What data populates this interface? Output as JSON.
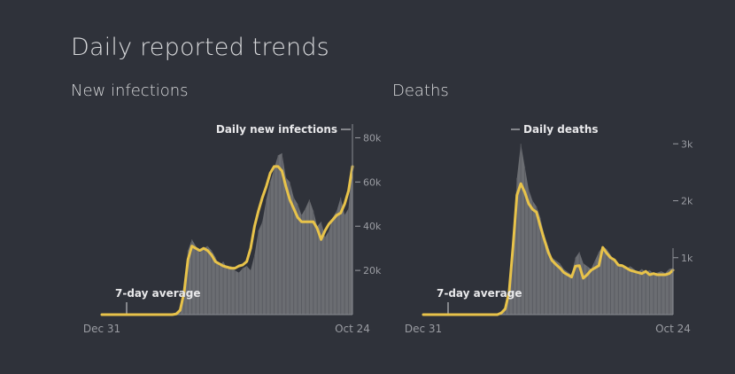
{
  "page_title": "Daily reported trends",
  "accent_color": "#e8c34a",
  "bar_color": "#6b6d72",
  "chart_data": [
    {
      "type": "area",
      "title": "New infections",
      "x_start": "Dec 31",
      "x_end": "Oct 24",
      "ylim": [
        0,
        85000
      ],
      "yticks": [
        {
          "value": 20000,
          "label": "20k"
        },
        {
          "value": 40000,
          "label": "40k"
        },
        {
          "value": 60000,
          "label": "60k"
        },
        {
          "value": 80000,
          "label": "80k"
        }
      ],
      "daily_label": "Daily new infections",
      "avg_label": "7-day average",
      "series": [
        {
          "name": "Daily new infections",
          "values": [
            0,
            0,
            0,
            0,
            0,
            0,
            0,
            0,
            0,
            0,
            0,
            0,
            0,
            0,
            0,
            0,
            0,
            0,
            0,
            500,
            3000,
            12000,
            29000,
            34000,
            31000,
            28000,
            30000,
            31000,
            29000,
            26000,
            22000,
            24000,
            21000,
            22000,
            20000,
            19000,
            21000,
            22000,
            20000,
            27000,
            38000,
            42000,
            52000,
            60000,
            66000,
            72000,
            73000,
            62000,
            60000,
            53000,
            50000,
            45000,
            48000,
            52000,
            47000,
            40000,
            42000,
            35000,
            38000,
            44000,
            47000,
            53000,
            45000,
            48000,
            70000
          ]
        },
        {
          "name": "7-day average",
          "values": [
            0,
            0,
            0,
            0,
            0,
            0,
            0,
            0,
            0,
            0,
            0,
            0,
            0,
            0,
            0,
            0,
            0,
            0,
            0,
            300,
            2000,
            10000,
            25000,
            31000,
            30000,
            29000,
            30000,
            29000,
            27000,
            24000,
            23000,
            22000,
            21500,
            21000,
            21000,
            22000,
            22500,
            24000,
            30000,
            40000,
            47000,
            53000,
            58000,
            64000,
            67000,
            67000,
            65000,
            58000,
            52000,
            48000,
            44000,
            42000,
            42000,
            42000,
            42000,
            39000,
            34000,
            38000,
            41000,
            43000,
            45000,
            46000,
            50000,
            56000,
            67000
          ]
        }
      ]
    },
    {
      "type": "area",
      "title": "Deaths",
      "x_start": "Dec 31",
      "x_end": "Oct 24",
      "ylim": [
        0,
        3300
      ],
      "yticks": [
        {
          "value": 1000,
          "label": "1k"
        },
        {
          "value": 2000,
          "label": "2k"
        },
        {
          "value": 3000,
          "label": "3k"
        }
      ],
      "daily_label": "Daily deaths",
      "avg_label": "7-day average",
      "series": [
        {
          "name": "Daily deaths",
          "values": [
            0,
            0,
            0,
            0,
            0,
            0,
            0,
            0,
            0,
            0,
            0,
            0,
            0,
            0,
            0,
            0,
            0,
            0,
            0,
            0,
            40,
            150,
            500,
            1300,
            2400,
            3000,
            2600,
            2200,
            2000,
            1900,
            1700,
            1400,
            1200,
            1000,
            950,
            900,
            800,
            750,
            700,
            1000,
            1100,
            900,
            850,
            800,
            950,
            1100,
            1200,
            1150,
            1050,
            950,
            900,
            850,
            800,
            850,
            800,
            750,
            800,
            750,
            780,
            720,
            740,
            760,
            730,
            800,
            820
          ]
        },
        {
          "name": "7-day average",
          "values": [
            0,
            0,
            0,
            0,
            0,
            0,
            0,
            0,
            0,
            0,
            0,
            0,
            0,
            0,
            0,
            0,
            0,
            0,
            0,
            0,
            30,
            100,
            400,
            1200,
            2100,
            2300,
            2150,
            1950,
            1850,
            1800,
            1550,
            1320,
            1100,
            950,
            880,
            820,
            740,
            700,
            660,
            850,
            860,
            640,
            700,
            780,
            820,
            860,
            1180,
            1080,
            1000,
            960,
            870,
            860,
            820,
            780,
            760,
            740,
            720,
            760,
            700,
            720,
            700,
            700,
            700,
            720,
            780
          ]
        }
      ]
    }
  ]
}
